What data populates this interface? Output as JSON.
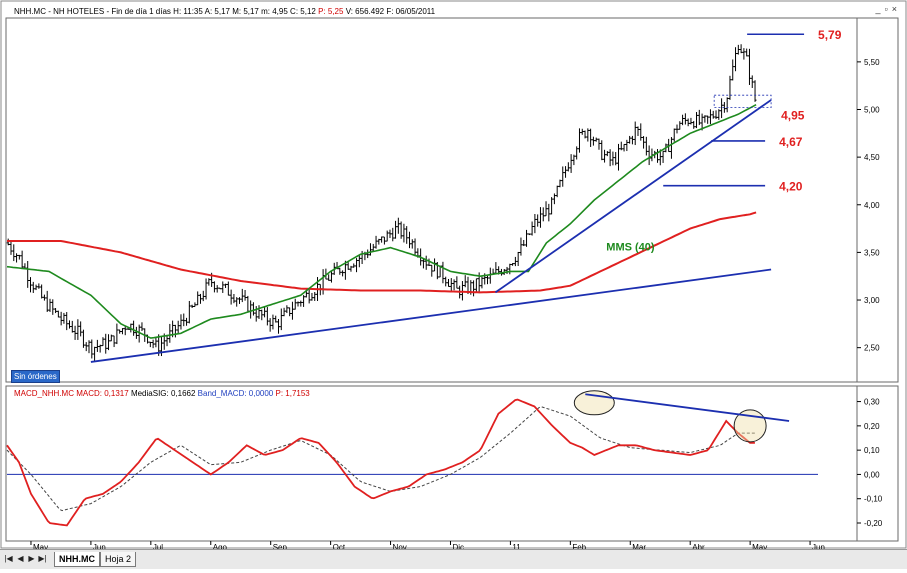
{
  "window": {
    "header": {
      "ticker": "NHH.MC - NH HOTELES - Fin de día 1 días",
      "hour": "H: 11:35",
      "open": "A: 5,17",
      "max": "M: 5,17",
      "min": "m: 4,95",
      "close": "C: 5,12",
      "p_label": "P:",
      "p_value": "5,25",
      "volume": "V: 656.492",
      "date": "F: 06/05/2011"
    },
    "macd_header": {
      "name": "MACD_NHH.MC",
      "macd": "MACD: 0,1317",
      "signal": "MediaSIG: 0,1662",
      "band": "Band_MACD: 0,0000",
      "p": "P: 1,7153"
    },
    "orders_badge": "Sin órdenes",
    "tabs": [
      "NHH.MC",
      "Hoja 2"
    ]
  },
  "colors": {
    "accent_red": "#e02020",
    "sma_green": "#1e8a1e",
    "trend_blue": "#1c2fb0",
    "price_black": "#000000",
    "macd_signal": "#444444"
  },
  "chart_data": [
    {
      "type": "line",
      "subtype": "ohlc",
      "x_axis": {
        "tick_labels": [
          "May",
          "Jun",
          "Jul",
          "Ago",
          "Sep",
          "Oct",
          "Nov",
          "Dic",
          "11",
          "Feb",
          "Mar",
          "Abr",
          "May",
          "Jun"
        ],
        "tick_positions": [
          0,
          1,
          2,
          3,
          4,
          5,
          6,
          7,
          8,
          9,
          10,
          11,
          12,
          13
        ],
        "range": [
          -0.4,
          13.75
        ]
      },
      "y_axis": {
        "side": "right",
        "ticks": [
          2.5,
          3.0,
          3.5,
          4.0,
          4.5,
          5.0,
          5.5
        ],
        "tick_labels": [
          "2,50",
          "3,00",
          "3,50",
          "4,00",
          "4,50",
          "5,00",
          "5,50"
        ],
        "range": [
          2.15,
          5.95
        ]
      },
      "grid": false,
      "price_anchors": {
        "t": [
          -0.4,
          -0.2,
          0.0,
          0.2,
          0.5,
          0.8,
          1.0,
          1.3,
          1.6,
          1.9,
          2.1,
          2.5,
          2.8,
          3.0,
          3.4,
          3.8,
          4.1,
          4.4,
          4.6,
          4.9,
          5.2,
          5.5,
          5.8,
          6.1,
          6.3,
          6.6,
          6.9,
          7.1,
          7.4,
          7.7,
          8.0,
          8.2,
          8.4,
          8.7,
          9.0,
          9.15,
          9.3,
          9.5,
          9.7,
          9.9,
          10.1,
          10.3,
          10.55,
          10.8,
          11.0,
          11.2,
          11.4,
          11.6,
          11.8,
          11.95,
          12.1
        ],
        "close": [
          3.6,
          3.45,
          3.2,
          3.0,
          2.8,
          2.65,
          2.5,
          2.55,
          2.75,
          2.65,
          2.5,
          2.75,
          3.0,
          3.2,
          3.05,
          2.85,
          2.75,
          2.95,
          3.05,
          3.2,
          3.35,
          3.45,
          3.6,
          3.75,
          3.65,
          3.4,
          3.25,
          3.1,
          3.15,
          3.25,
          3.4,
          3.55,
          3.8,
          4.0,
          4.5,
          4.7,
          4.8,
          4.55,
          4.45,
          4.6,
          4.8,
          4.55,
          4.5,
          4.85,
          4.9,
          4.85,
          4.95,
          5.1,
          5.7,
          5.5,
          5.05
        ]
      },
      "series": [
        {
          "values": "ohlc daily bars (black)"
        },
        {
          "name": "MMS (40)",
          "values": {
            "t": [
              -0.4,
              0.3,
              1.0,
              1.5,
              2.0,
              2.5,
              3.0,
              3.5,
              4.0,
              4.5,
              5.0,
              5.5,
              6.0,
              6.5,
              7.0,
              7.5,
              8.0,
              8.3,
              8.6,
              9.0,
              9.4,
              9.8,
              10.2,
              10.6,
              11.0,
              11.4,
              11.8,
              12.1
            ],
            "y": [
              3.35,
              3.3,
              3.05,
              2.75,
              2.6,
              2.65,
              2.8,
              2.85,
              2.95,
              3.05,
              3.3,
              3.48,
              3.55,
              3.45,
              3.3,
              3.25,
              3.3,
              3.3,
              3.6,
              3.8,
              4.05,
              4.25,
              4.45,
              4.6,
              4.75,
              4.85,
              4.95,
              5.05
            ]
          }
        },
        {
          "values": {
            "t": [
              -0.4,
              0.5,
              1.5,
              2.5,
              3.5,
              4.5,
              5.5,
              6.5,
              7.5,
              8.5,
              9.0,
              9.5,
              10.0,
              10.5,
              11.0,
              11.5,
              12.0,
              12.1
            ],
            "y": [
              3.62,
              3.62,
              3.5,
              3.32,
              3.2,
              3.12,
              3.1,
              3.1,
              3.08,
              3.1,
              3.15,
              3.3,
              3.45,
              3.6,
              3.75,
              3.85,
              3.9,
              3.92
            ]
          }
        }
      ],
      "trendlines": [
        {
          "color": "blue",
          "from": [
            1.0,
            2.35
          ],
          "to": [
            12.35,
            3.32
          ]
        },
        {
          "color": "blue",
          "from": [
            7.75,
            3.08
          ],
          "to": [
            12.35,
            5.1
          ]
        }
      ],
      "levels": [
        {
          "label": "5,79",
          "value": 5.79,
          "from": 11.95,
          "to": 12.9
        },
        {
          "label": "4,95",
          "value": 4.95,
          "from": 12.0,
          "to": 12.05
        },
        {
          "label": "4,67",
          "value": 4.67,
          "from": 11.35,
          "to": 12.25
        },
        {
          "label": "4,20",
          "value": 4.2,
          "from": 10.55,
          "to": 12.25
        }
      ],
      "dashed_box": {
        "x": [
          11.4,
          12.35
        ],
        "y": [
          5.02,
          5.15
        ]
      },
      "annotations": [
        {
          "text": "MMS (40)",
          "x": 9.6,
          "y": 3.52,
          "color": "green"
        }
      ]
    },
    {
      "type": "line",
      "title": "MACD",
      "y_axis": {
        "side": "right",
        "ticks": [
          0.3,
          0.2,
          0.1,
          0.0,
          -0.1,
          -0.2
        ],
        "tick_labels": [
          "0,30",
          "0,20",
          "0,10",
          "0,00",
          "-0,10",
          "-0,20"
        ],
        "range": [
          -0.27,
          0.36
        ]
      },
      "x_range": [
        -0.4,
        13.75
      ],
      "series": [
        {
          "name": "MACD",
          "values": {
            "t": [
              -0.4,
              -0.2,
              0.0,
              0.3,
              0.6,
              0.9,
              1.2,
              1.5,
              1.8,
              2.1,
              2.4,
              2.7,
              3.0,
              3.3,
              3.6,
              3.9,
              4.2,
              4.5,
              4.8,
              5.1,
              5.4,
              5.7,
              6.0,
              6.3,
              6.6,
              6.9,
              7.2,
              7.5,
              7.8,
              8.1,
              8.4,
              8.7,
              9.0,
              9.2,
              9.4,
              9.6,
              9.8,
              10.1,
              10.4,
              10.7,
              11.0,
              11.3,
              11.6,
              11.8,
              12.0,
              12.1
            ],
            "y": [
              0.12,
              0.05,
              -0.08,
              -0.2,
              -0.21,
              -0.1,
              -0.08,
              -0.03,
              0.05,
              0.15,
              0.1,
              0.05,
              0.0,
              0.05,
              0.12,
              0.08,
              0.1,
              0.15,
              0.13,
              0.05,
              -0.05,
              -0.1,
              -0.07,
              -0.05,
              0.0,
              0.02,
              0.05,
              0.1,
              0.25,
              0.31,
              0.28,
              0.2,
              0.13,
              0.11,
              0.08,
              0.1,
              0.12,
              0.12,
              0.1,
              0.09,
              0.08,
              0.1,
              0.22,
              0.17,
              0.13,
              0.13
            ]
          }
        },
        {
          "name": "MediaSIG",
          "values": {
            "t": [
              -0.4,
              0.0,
              0.5,
              1.0,
              1.5,
              2.0,
              2.5,
              3.0,
              3.5,
              4.0,
              4.5,
              5.0,
              5.5,
              6.0,
              6.5,
              7.0,
              7.5,
              8.0,
              8.5,
              9.0,
              9.5,
              10.0,
              10.5,
              11.0,
              11.5,
              11.8,
              12.1
            ],
            "y": [
              0.1,
              0.0,
              -0.15,
              -0.12,
              -0.05,
              0.05,
              0.12,
              0.04,
              0.05,
              0.1,
              0.14,
              0.08,
              -0.03,
              -0.07,
              -0.05,
              0.0,
              0.07,
              0.17,
              0.28,
              0.24,
              0.15,
              0.11,
              0.1,
              0.09,
              0.12,
              0.17,
              0.17
            ]
          }
        },
        {
          "name": "Band_MACD",
          "values": {
            "y": 0.0
          }
        }
      ],
      "trendlines": [
        {
          "color": "blue",
          "from": [
            9.25,
            0.33
          ],
          "to": [
            12.65,
            0.22
          ]
        }
      ],
      "highlights": [
        {
          "x": 9.4,
          "y": 0.295
        },
        {
          "x": 12.0,
          "y": 0.2
        }
      ]
    }
  ]
}
